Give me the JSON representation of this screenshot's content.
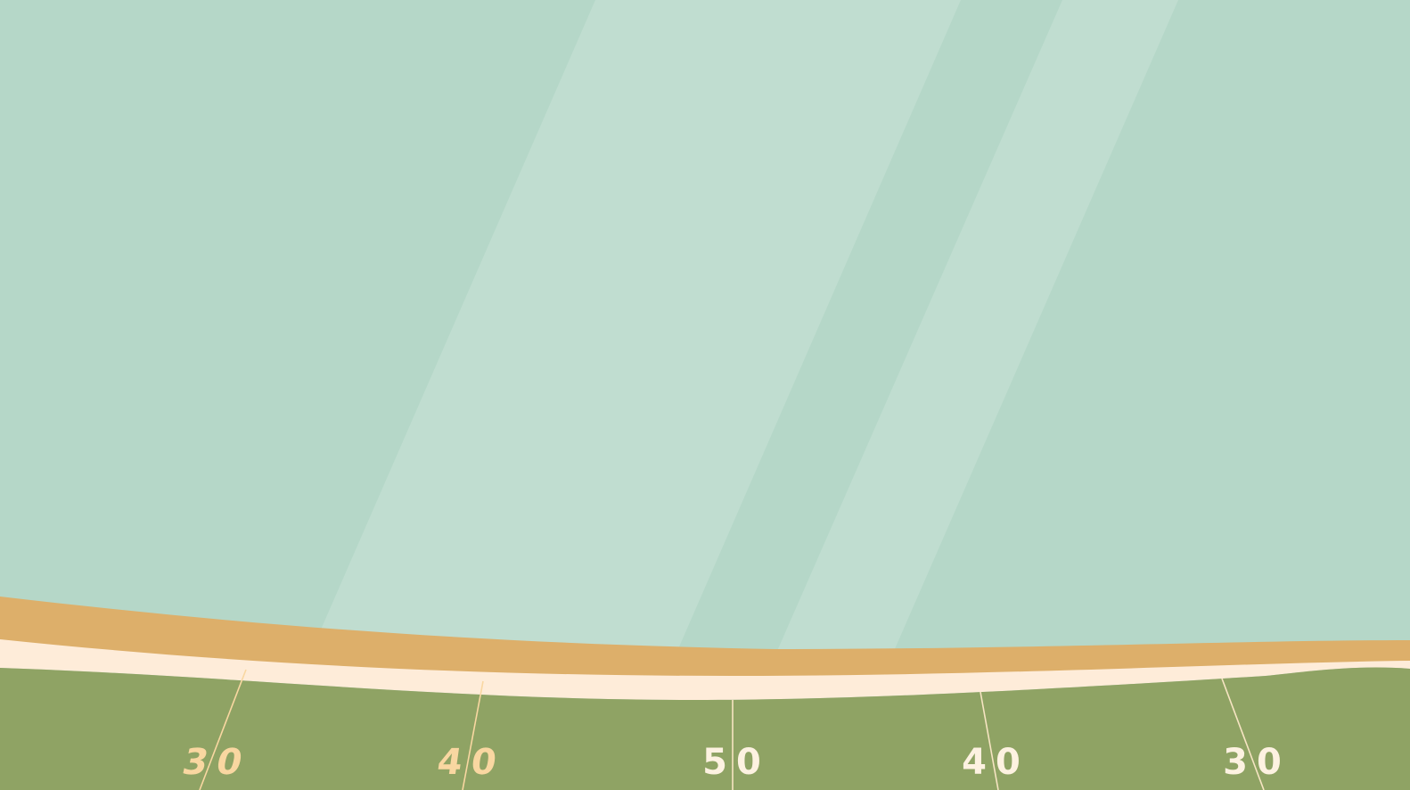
{
  "scene": {
    "name": "football-field-illustration",
    "colors": {
      "sky": "#b5d7c8",
      "sky_light": "#c0ddd0",
      "stand": "#ddaf6a",
      "sideline": "#feecd9",
      "turf": "#8fa364",
      "yard_number_warm": "#f9d7a1",
      "yard_number_white": "#fdf2e1",
      "yard_line": "#f6e4c2"
    },
    "yard_markers": [
      {
        "label": "30",
        "tone": "warm"
      },
      {
        "label": "40",
        "tone": "warm"
      },
      {
        "label": "50",
        "tone": "white"
      },
      {
        "label": "40",
        "tone": "white"
      },
      {
        "label": "30",
        "tone": "white"
      }
    ]
  }
}
